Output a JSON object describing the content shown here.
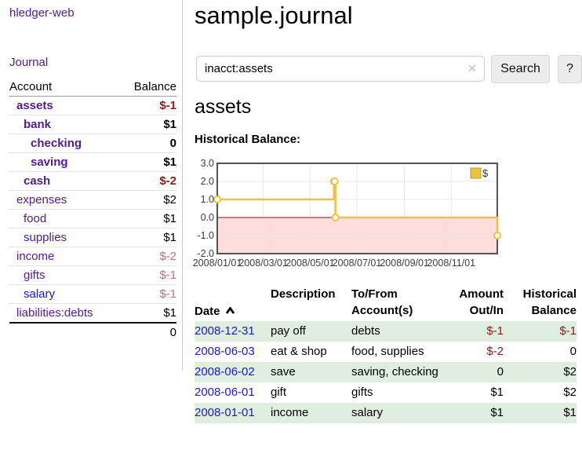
{
  "colors": {
    "link_purple": "#551a8b",
    "link_blue": "#1414e0",
    "negative_strong": "#8c1c1c",
    "negative_dim": "#c27474",
    "stripe_green": "#dfeede",
    "chart_series_yellow": "#edc240",
    "chart_negative_fill": "#ffdddd",
    "chart_zero_line": "#aa0000",
    "chart_border": "#545454",
    "chart_grid": "#e7e7e7"
  },
  "sidebar": {
    "brand": "hledger-web",
    "nav": {
      "journal": "Journal"
    },
    "accounts": {
      "header_account": "Account",
      "header_balance": "Balance",
      "rows": [
        {
          "name": "assets",
          "balance": "$-1",
          "depth": 1,
          "cur": true,
          "neg": "strong"
        },
        {
          "name": "bank",
          "balance": "$1",
          "depth": 2,
          "cur": true,
          "neg": null
        },
        {
          "name": "checking",
          "balance": "0",
          "depth": 3,
          "cur": true,
          "neg": null
        },
        {
          "name": "saving",
          "balance": "$1",
          "depth": 3,
          "cur": true,
          "neg": null
        },
        {
          "name": "cash",
          "balance": "$-2",
          "depth": 2,
          "cur": true,
          "neg": "strong"
        },
        {
          "name": "expenses",
          "balance": "$2",
          "depth": 1,
          "cur": false,
          "neg": null
        },
        {
          "name": "food",
          "balance": "$1",
          "depth": 2,
          "cur": false,
          "neg": null
        },
        {
          "name": "supplies",
          "balance": "$1",
          "depth": 2,
          "cur": false,
          "neg": null
        },
        {
          "name": "income",
          "balance": "$-2",
          "depth": 1,
          "cur": false,
          "neg": "dim"
        },
        {
          "name": "gifts",
          "balance": "$-1",
          "depth": 2,
          "cur": false,
          "neg": "dim"
        },
        {
          "name": "salary",
          "balance": "$-1",
          "depth": 2,
          "cur": false,
          "neg": "dim",
          "blue": true
        },
        {
          "name": "liabilities:debts",
          "balance": "$1",
          "depth": 1,
          "cur": false,
          "neg": null
        }
      ],
      "total": "0"
    }
  },
  "main": {
    "title": "sample.journal",
    "search": {
      "value": "inacct:assets",
      "clear_icon": "✕",
      "search_button": "Search",
      "help_button": "?"
    },
    "account_heading": "assets",
    "chart_label": "Historical Balance:"
  },
  "chart_data": {
    "type": "line",
    "title": "Historical Balance",
    "legend": "$",
    "legend_position": "top-right",
    "grid": true,
    "steps": true,
    "ylim": [
      -2,
      3
    ],
    "xlim": [
      "2008-01-01",
      "2008-12-31"
    ],
    "yticks": [
      {
        "v": 3,
        "label": "3.0"
      },
      {
        "v": 2,
        "label": "2.0"
      },
      {
        "v": 1,
        "label": "1.0"
      },
      {
        "v": 0,
        "label": "0.0"
      },
      {
        "v": -1,
        "label": "-1.0"
      },
      {
        "v": -2,
        "label": "-2.0"
      }
    ],
    "xticks": [
      {
        "date": "2008-01-01",
        "label": "2008/01/01"
      },
      {
        "date": "2008-03-01",
        "label": "2008/03/01"
      },
      {
        "date": "2008-05-01",
        "label": "2008/05/01"
      },
      {
        "date": "2008-07-01",
        "label": "2008/07/01"
      },
      {
        "date": "2008-09-01",
        "label": "2008/09/01"
      },
      {
        "date": "2008-11-01",
        "label": "2008/11/01"
      }
    ],
    "series": [
      {
        "name": "$",
        "color": "#edc240",
        "points": [
          [
            "2008-01-01",
            1
          ],
          [
            "2008-06-01",
            2
          ],
          [
            "2008-06-02",
            2
          ],
          [
            "2008-06-03",
            0
          ],
          [
            "2008-12-31",
            -1
          ]
        ]
      }
    ],
    "negative_region_color": "#ffdddd",
    "zero_line_color": "#aa0000"
  },
  "register": {
    "headers": {
      "date": "Date",
      "description": "Description",
      "tofrom": "To/From\nAccount(s)",
      "amount": "Amount\nOut/In",
      "balance": "Historical\nBalance"
    },
    "rows": [
      {
        "date": "2008-12-31",
        "description": "pay off",
        "accounts": "debts",
        "amount": "$-1",
        "amount_neg": true,
        "balance": "$-1",
        "balance_neg": true
      },
      {
        "date": "2008-06-03",
        "description": "eat & shop",
        "accounts": "food, supplies",
        "amount": "$-2",
        "amount_neg": true,
        "balance": "0",
        "balance_neg": false
      },
      {
        "date": "2008-06-02",
        "description": "save",
        "accounts": "saving, checking",
        "amount": "0",
        "amount_neg": false,
        "balance": "$2",
        "balance_neg": false
      },
      {
        "date": "2008-06-01",
        "description": "gift",
        "accounts": "gifts",
        "amount": "$1",
        "amount_neg": false,
        "balance": "$2",
        "balance_neg": false
      },
      {
        "date": "2008-01-01",
        "description": "income",
        "accounts": "salary",
        "amount": "$1",
        "amount_neg": false,
        "balance": "$1",
        "balance_neg": false
      }
    ]
  }
}
